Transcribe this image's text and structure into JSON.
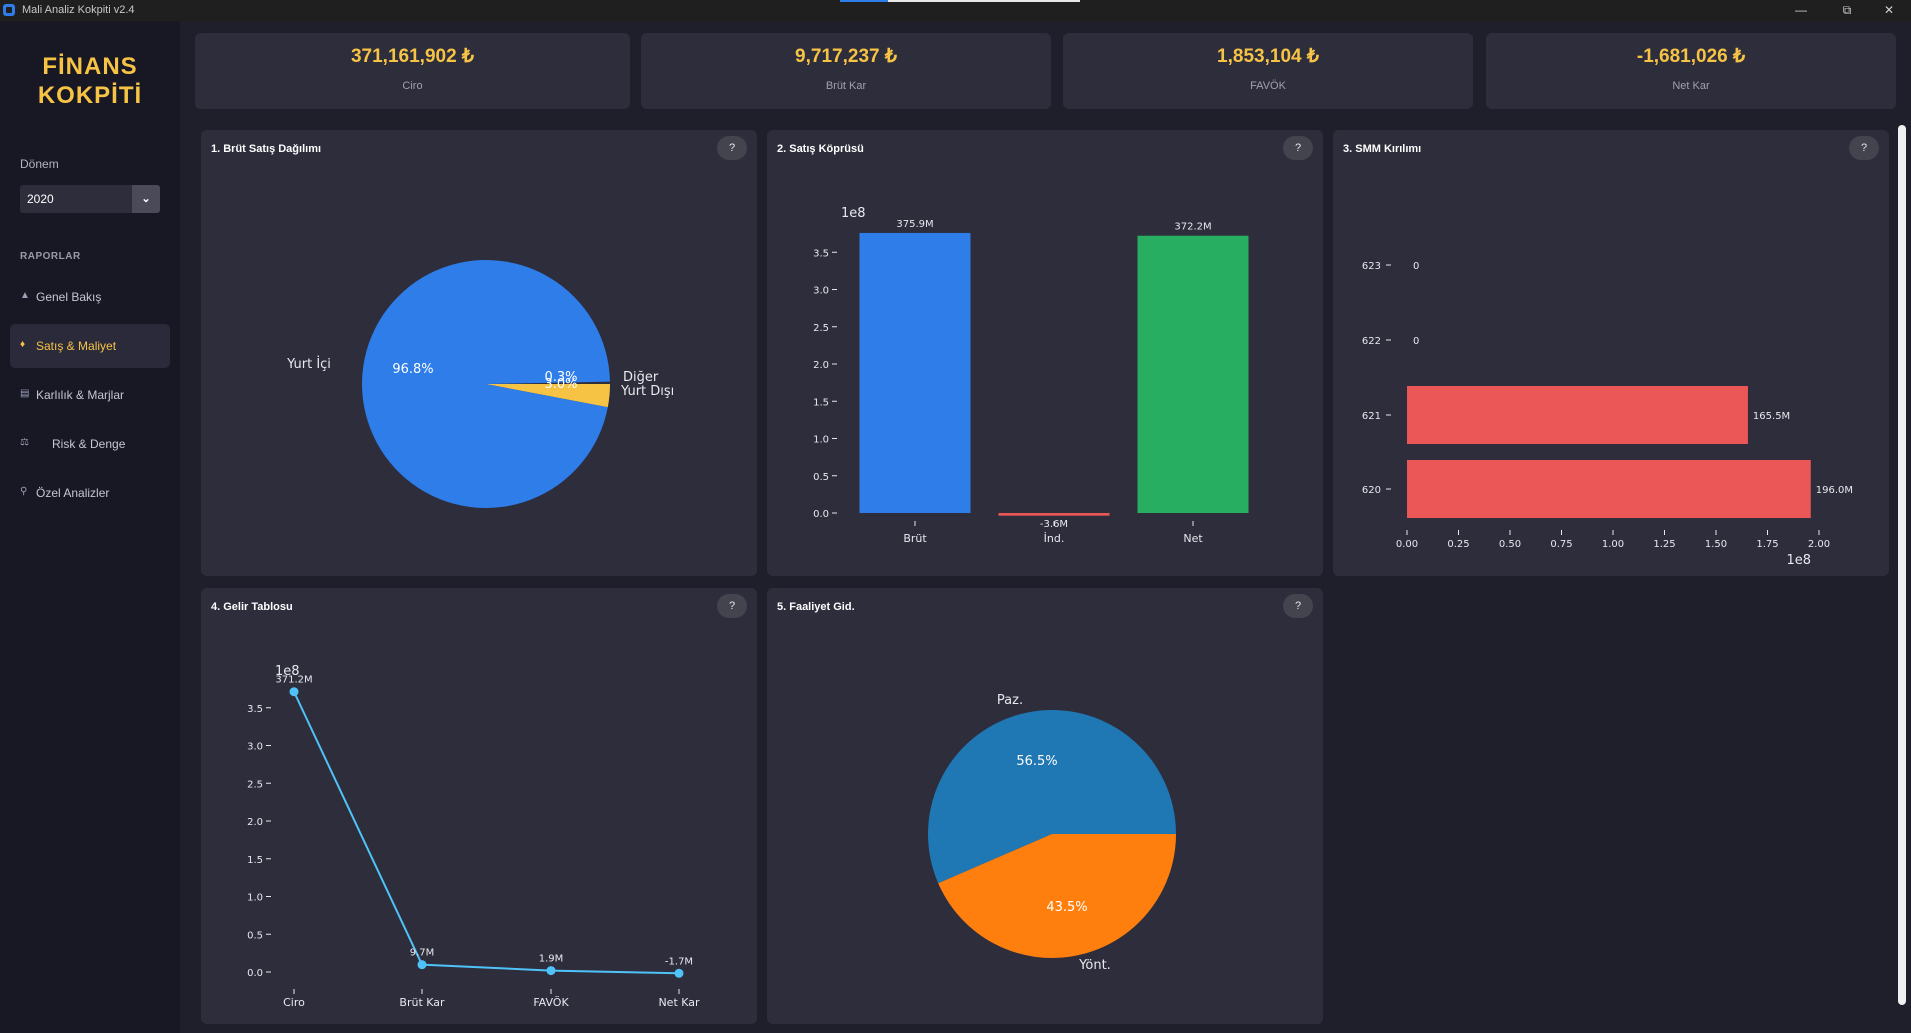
{
  "window": {
    "title": "Mali Analiz Kokpiti v2.4",
    "loading_progress": 0.2
  },
  "sidebar": {
    "brand_line1": "FİNANS",
    "brand_line2": "KOKPİTİ",
    "period_label": "Dönem",
    "period_value": "2020",
    "reports_label": "RAPORLAR",
    "items": [
      {
        "label": "Genel Bakış",
        "icon": "home-icon",
        "glyph": "▲",
        "active": false
      },
      {
        "label": "Satış & Maliyet",
        "icon": "money-bag-icon",
        "glyph": "♦",
        "active": true
      },
      {
        "label": "Karlılık & Marjlar",
        "icon": "chart-icon",
        "glyph": "▤",
        "active": false
      },
      {
        "label": "Risk & Denge",
        "icon": "scale-icon",
        "glyph": "⚖",
        "active": false
      },
      {
        "label": "Özel Analizler",
        "icon": "search-icon",
        "glyph": "⚲",
        "active": false
      }
    ]
  },
  "kpis": [
    {
      "value": "371,161,902 ₺",
      "label": "Ciro"
    },
    {
      "value": "9,717,237 ₺",
      "label": "Brüt Kar"
    },
    {
      "value": "1,853,104 ₺",
      "label": "FAVÖK"
    },
    {
      "value": "-1,681,026 ₺",
      "label": "Net Kar"
    }
  ],
  "colors": {
    "accent": "#f6c344",
    "blue": "#2e7de9",
    "green": "#27ae60",
    "red": "#eb5757",
    "line": "#4fc3f7",
    "mpl_blue": "#1f77b4",
    "mpl_orange": "#ff7f0e"
  },
  "panels": [
    {
      "title": "1. Brüt Satış Dağılımı",
      "help": "?"
    },
    {
      "title": "2. Satış Köprüsü",
      "help": "?"
    },
    {
      "title": "3. SMM Kırılımı",
      "help": "?"
    },
    {
      "title": "4. Gelir Tablosu",
      "help": "?"
    },
    {
      "title": "5. Faaliyet Gid.",
      "help": "?"
    }
  ],
  "chart_data": [
    {
      "type": "pie",
      "categories": [
        "Yurt İçi",
        "Diğer",
        "Yurt Dışı"
      ],
      "values": [
        96.8,
        0.3,
        3.0
      ],
      "labels": [
        "96.8%",
        "0.3%",
        "3.0%"
      ],
      "colors": [
        "#2e7de9",
        "#2d2d3c",
        "#f6c344"
      ]
    },
    {
      "type": "bar",
      "categories": [
        "Brüt",
        "İnd.",
        "Net"
      ],
      "values": [
        375.9,
        -3.6,
        372.2
      ],
      "value_labels": [
        "375.9M",
        "-3.6M",
        "372.2M"
      ],
      "colors": [
        "#2e7de9",
        "#eb5757",
        "#27ae60"
      ],
      "ylim": [
        0,
        3.75
      ],
      "yticks": [
        "0.0",
        "0.5",
        "1.0",
        "1.5",
        "2.0",
        "2.5",
        "3.0",
        "3.5"
      ],
      "offset_label": "1e8"
    },
    {
      "type": "bar",
      "orientation": "horizontal",
      "categories": [
        "620",
        "621",
        "622",
        "623"
      ],
      "values": [
        196.0,
        165.5,
        0,
        0
      ],
      "value_labels": [
        "196.0M",
        "165.5M",
        "0",
        "0"
      ],
      "color": "#eb5757",
      "xlim": [
        0,
        2.0
      ],
      "xticks": [
        "0.00",
        "0.25",
        "0.50",
        "0.75",
        "1.00",
        "1.25",
        "1.50",
        "1.75",
        "2.00"
      ],
      "offset_label": "1e8"
    },
    {
      "type": "line",
      "categories": [
        "Ciro",
        "Brüt Kar",
        "FAVÖK",
        "Net Kar"
      ],
      "values": [
        371.2,
        9.7,
        1.9,
        -1.7
      ],
      "value_labels": [
        "371.2M",
        "9.7M",
        "1.9M",
        "-1.7M"
      ],
      "color": "#4fc3f7",
      "yticks": [
        "0.0",
        "0.5",
        "1.0",
        "1.5",
        "2.0",
        "2.5",
        "3.0",
        "3.5"
      ],
      "offset_label": "1e8"
    },
    {
      "type": "pie",
      "categories": [
        "Paz.",
        "Yönt."
      ],
      "values": [
        56.5,
        43.5
      ],
      "labels": [
        "56.5%",
        "43.5%"
      ],
      "colors": [
        "#1f77b4",
        "#ff7f0e"
      ]
    }
  ]
}
